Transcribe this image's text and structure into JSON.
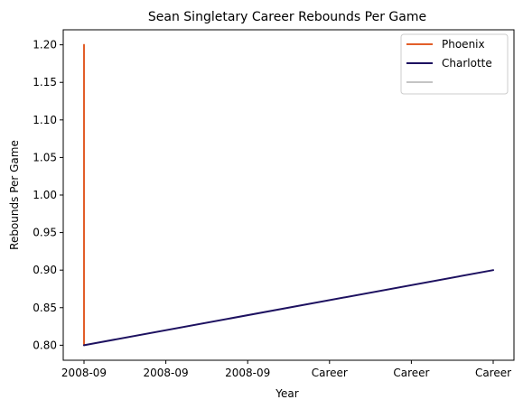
{
  "chart_data": {
    "type": "line",
    "title": "Sean Singletary Career Rebounds Per Game",
    "xlabel": "Year",
    "ylabel": "Rebounds Per Game",
    "x_tick_labels": [
      "2008-09",
      "2008-09",
      "2008-09",
      "Career",
      "Career",
      "Career"
    ],
    "x_range": [
      0,
      5
    ],
    "ylim": [
      0.78,
      1.22
    ],
    "y_ticks": [
      0.8,
      0.85,
      0.9,
      0.95,
      1.0,
      1.05,
      1.1,
      1.15,
      1.2
    ],
    "grid": false,
    "legend_position": "upper right",
    "series": [
      {
        "name": "Phoenix",
        "color": "#E25E29",
        "points": [
          [
            0,
            0.8
          ],
          [
            0,
            1.2
          ]
        ]
      },
      {
        "name": "Charlotte",
        "color": "#1D1160",
        "points": [
          [
            0,
            0.8
          ],
          [
            5,
            0.9
          ]
        ]
      },
      {
        "name": "",
        "color": "#C4C4C4",
        "points": []
      }
    ]
  }
}
